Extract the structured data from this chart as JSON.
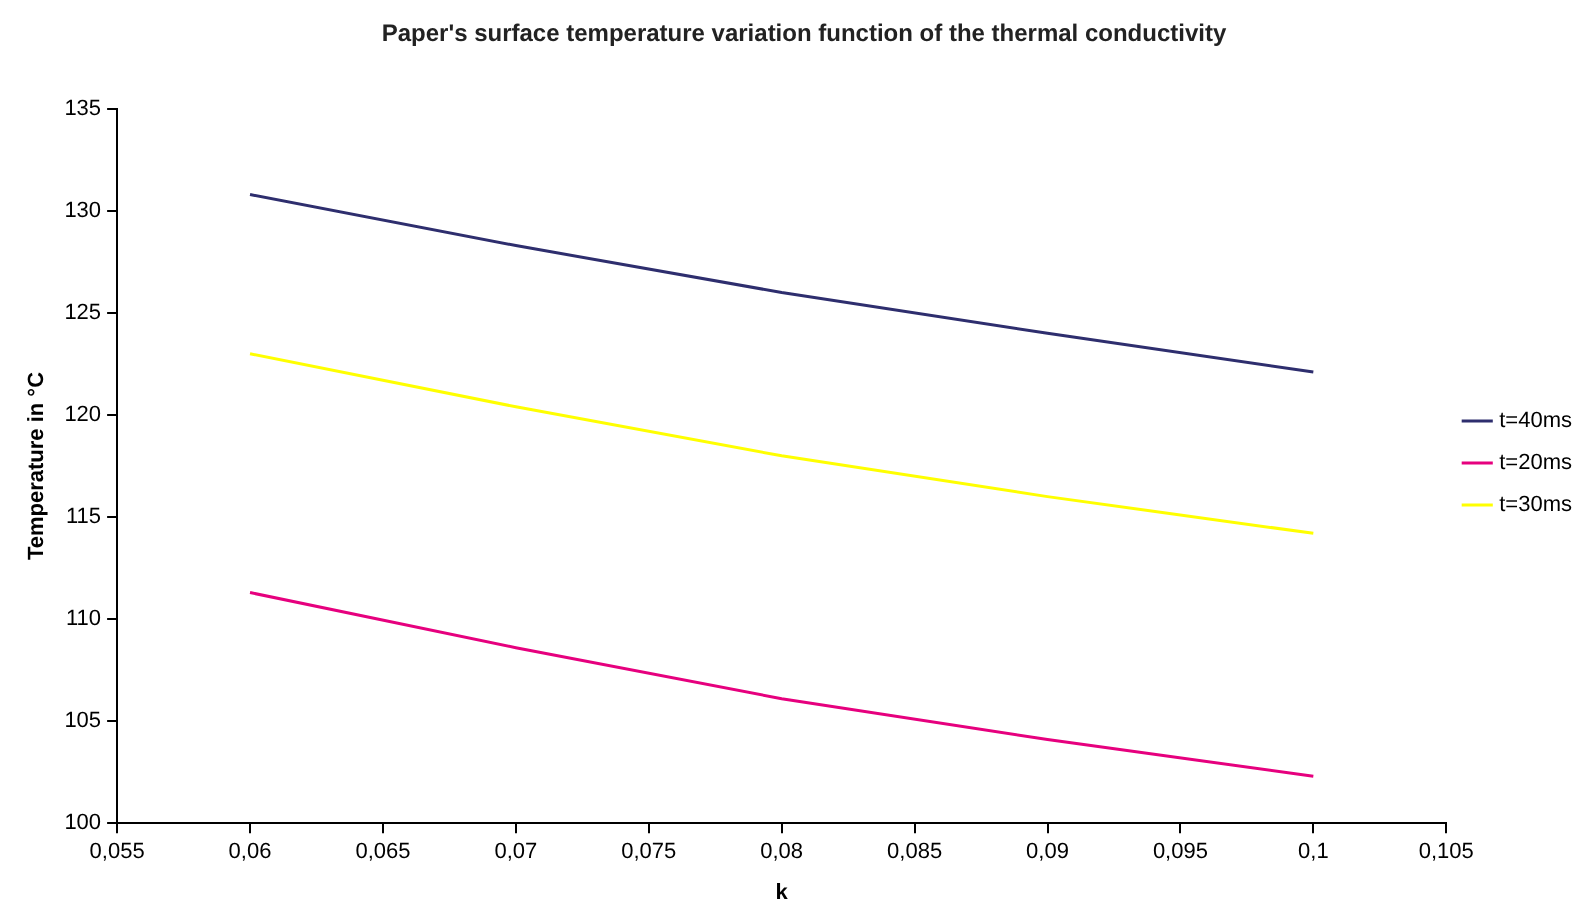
{
  "chart_data": {
    "type": "line",
    "title": "Paper's surface temperature variation function of the thermal conductivity",
    "xlabel": "k",
    "ylabel": "Temperature in °C",
    "x": [
      0.06,
      0.07,
      0.08,
      0.09,
      0.1
    ],
    "series": [
      {
        "name": "t=40ms",
        "color": "#2e2e6e",
        "values": [
          130.8,
          128.3,
          126.0,
          124.0,
          122.1
        ]
      },
      {
        "name": "t=20ms",
        "color": "#e6007e",
        "values": [
          111.3,
          108.6,
          106.1,
          104.1,
          102.3
        ]
      },
      {
        "name": "t=30ms",
        "color": "#ffff00",
        "values": [
          123.0,
          120.4,
          118.0,
          116.0,
          114.2
        ]
      }
    ],
    "xlim": [
      0.055,
      0.105
    ],
    "xticks": [
      {
        "value": 0.055,
        "label": "0,055"
      },
      {
        "value": 0.06,
        "label": "0,06"
      },
      {
        "value": 0.065,
        "label": "0,065"
      },
      {
        "value": 0.07,
        "label": "0,07"
      },
      {
        "value": 0.075,
        "label": "0,075"
      },
      {
        "value": 0.08,
        "label": "0,08"
      },
      {
        "value": 0.085,
        "label": "0,085"
      },
      {
        "value": 0.09,
        "label": "0,09"
      },
      {
        "value": 0.095,
        "label": "0,095"
      },
      {
        "value": 0.1,
        "label": "0,1"
      },
      {
        "value": 0.105,
        "label": "0,105"
      }
    ],
    "ylim": [
      100,
      135
    ],
    "yticks": [
      100,
      105,
      110,
      115,
      120,
      125,
      130,
      135
    ],
    "grid": false,
    "legend": "right",
    "marker": "none",
    "line_style": "solid"
  }
}
